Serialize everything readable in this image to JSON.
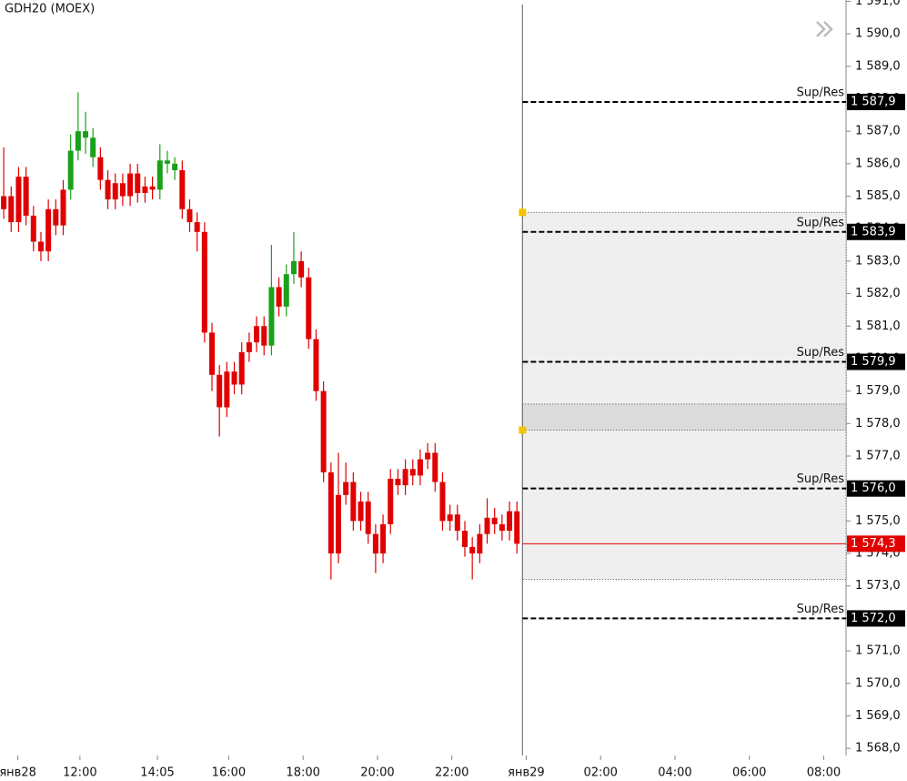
{
  "chart_data": {
    "type": "candlestick",
    "title": "GDH20 (MOEX)",
    "x": [
      9.95,
      10.15,
      10.35,
      10.55,
      10.75,
      10.95,
      11.15,
      11.35,
      11.55,
      11.75,
      11.95,
      12.15,
      12.35,
      12.55,
      12.75,
      12.95,
      13.15,
      13.35,
      13.55,
      13.75,
      13.95,
      14.15,
      14.35,
      14.55,
      14.75,
      14.95,
      15.15,
      15.35,
      15.55,
      15.75,
      15.95,
      16.15,
      16.35,
      16.55,
      16.75,
      16.95,
      17.15,
      17.35,
      17.55,
      17.75,
      17.95,
      18.15,
      18.35,
      18.55,
      18.75,
      18.95,
      19.15,
      19.35,
      19.55,
      19.75,
      19.95,
      20.15,
      20.35,
      20.55,
      20.75,
      20.95,
      21.15,
      21.35,
      21.55,
      21.75,
      21.95,
      22.15,
      22.35,
      22.55,
      22.75,
      22.95,
      23.15,
      23.35,
      23.55,
      23.75
    ],
    "open": [
      1584.6,
      1585.0,
      1584.2,
      1585.6,
      1584.4,
      1583.6,
      1583.3,
      1584.6,
      1584.1,
      1585.2,
      1586.4,
      1587.0,
      1586.8,
      1586.2,
      1585.5,
      1584.9,
      1585.4,
      1585.0,
      1585.7,
      1585.1,
      1585.3,
      1585.2,
      1586.1,
      1586.0,
      1585.8,
      1584.6,
      1584.2,
      1583.9,
      1580.8,
      1579.5,
      1578.5,
      1579.6,
      1579.2,
      1580.2,
      1580.5,
      1581.0,
      1580.4,
      1582.2,
      1581.6,
      1582.6,
      1583.0,
      1582.5,
      1580.6,
      1579.0,
      1576.5,
      1574.0,
      1575.8,
      1576.2,
      1575.0,
      1575.6,
      1574.6,
      1574.0,
      1574.9,
      1576.3,
      1576.1,
      1576.6,
      1576.4,
      1576.9,
      1577.1,
      1576.2,
      1575.0,
      1575.2,
      1574.7,
      1574.2,
      1574.0,
      1574.6,
      1575.1,
      1574.9,
      1574.7,
      1575.3
    ],
    "high": [
      1586.5,
      1585.3,
      1585.9,
      1585.9,
      1584.7,
      1583.9,
      1584.9,
      1584.9,
      1585.5,
      1586.9,
      1588.2,
      1587.6,
      1587.1,
      1586.5,
      1585.8,
      1585.7,
      1585.7,
      1586.0,
      1586.0,
      1585.6,
      1585.6,
      1586.6,
      1586.4,
      1586.2,
      1586.1,
      1584.9,
      1584.5,
      1584.2,
      1581.1,
      1579.8,
      1579.9,
      1579.9,
      1580.5,
      1580.8,
      1581.3,
      1581.3,
      1583.5,
      1582.5,
      1582.9,
      1583.9,
      1583.3,
      1582.8,
      1580.9,
      1579.3,
      1576.8,
      1577.1,
      1576.8,
      1576.5,
      1575.9,
      1575.9,
      1574.9,
      1575.2,
      1576.6,
      1576.6,
      1576.9,
      1576.9,
      1577.2,
      1577.4,
      1577.4,
      1576.5,
      1575.5,
      1575.5,
      1575.0,
      1574.5,
      1574.9,
      1575.7,
      1575.4,
      1575.2,
      1575.6,
      1575.6
    ],
    "low": [
      1584.3,
      1583.9,
      1583.9,
      1584.1,
      1583.3,
      1583.0,
      1583.0,
      1583.8,
      1583.8,
      1584.9,
      1586.1,
      1586.3,
      1585.9,
      1585.2,
      1584.6,
      1584.6,
      1584.7,
      1584.7,
      1584.8,
      1584.8,
      1584.9,
      1584.9,
      1585.7,
      1585.5,
      1584.3,
      1583.9,
      1583.3,
      1580.5,
      1579.0,
      1577.6,
      1578.2,
      1578.9,
      1578.9,
      1579.9,
      1580.2,
      1580.1,
      1580.1,
      1581.3,
      1581.3,
      1582.3,
      1582.2,
      1580.3,
      1578.7,
      1576.2,
      1573.2,
      1573.7,
      1575.5,
      1574.7,
      1574.7,
      1574.3,
      1573.4,
      1573.7,
      1574.6,
      1575.8,
      1575.8,
      1576.1,
      1576.1,
      1576.6,
      1575.9,
      1574.7,
      1574.7,
      1574.4,
      1573.9,
      1573.2,
      1573.7,
      1574.3,
      1574.6,
      1574.4,
      1574.4,
      1574.0
    ],
    "close": [
      1585.0,
      1584.2,
      1585.6,
      1584.4,
      1583.6,
      1583.3,
      1584.6,
      1584.1,
      1585.2,
      1586.4,
      1587.0,
      1586.8,
      1586.2,
      1585.5,
      1584.9,
      1585.4,
      1585.0,
      1585.7,
      1585.1,
      1585.3,
      1585.2,
      1586.1,
      1586.0,
      1585.8,
      1584.6,
      1584.2,
      1583.9,
      1580.8,
      1579.5,
      1578.5,
      1579.6,
      1579.2,
      1580.2,
      1580.5,
      1581.0,
      1580.4,
      1582.2,
      1581.6,
      1582.6,
      1583.0,
      1582.5,
      1580.6,
      1579.0,
      1576.5,
      1574.0,
      1575.8,
      1576.2,
      1575.0,
      1575.6,
      1574.6,
      1574.0,
      1574.9,
      1576.3,
      1576.1,
      1576.6,
      1576.4,
      1576.9,
      1577.1,
      1576.2,
      1575.0,
      1575.2,
      1574.7,
      1574.2,
      1574.0,
      1574.6,
      1575.1,
      1574.9,
      1574.7,
      1575.3,
      1574.3
    ],
    "colors": [
      "#e00000",
      "#e00000",
      "#e00000",
      "#e00000",
      "#e00000",
      "#e00000",
      "#e00000",
      "#e00000",
      "#e00000",
      "#1aa01a",
      "#1aa01a",
      "#1aa01a",
      "#1aa01a",
      "#e00000",
      "#e00000",
      "#e00000",
      "#e00000",
      "#e00000",
      "#e00000",
      "#e00000",
      "#e00000",
      "#1aa01a",
      "#1aa01a",
      "#1aa01a",
      "#e00000",
      "#e00000",
      "#e00000",
      "#e00000",
      "#e00000",
      "#e00000",
      "#e00000",
      "#e00000",
      "#e00000",
      "#e00000",
      "#e00000",
      "#e00000",
      "#1aa01a",
      "#e00000",
      "#1aa01a",
      "#1aa01a",
      "#e00000",
      "#e00000",
      "#e00000",
      "#e00000",
      "#e00000",
      "#e00000",
      "#e00000",
      "#e00000",
      "#e00000",
      "#e00000",
      "#e00000",
      "#e00000",
      "#e00000",
      "#e00000",
      "#e00000",
      "#e00000",
      "#e00000",
      "#e00000",
      "#e00000",
      "#e00000",
      "#e00000",
      "#e00000",
      "#e00000",
      "#e00000",
      "#e00000",
      "#e00000",
      "#e00000",
      "#e00000",
      "#e00000",
      "#e00000"
    ],
    "xlim": [
      9.85,
      32.6
    ],
    "xticks": [
      {
        "value": 10.33,
        "label": "янв28"
      },
      {
        "value": 12,
        "label": "12:00"
      },
      {
        "value": 14.083,
        "label": "14:05"
      },
      {
        "value": 16,
        "label": "16:00"
      },
      {
        "value": 18,
        "label": "18:00"
      },
      {
        "value": 20,
        "label": "20:00"
      },
      {
        "value": 22,
        "label": "22:00"
      },
      {
        "value": 24,
        "label": "янв29"
      },
      {
        "value": 26,
        "label": "02:00"
      },
      {
        "value": 28,
        "label": "04:00"
      },
      {
        "value": 30,
        "label": "06:00"
      },
      {
        "value": 32,
        "label": "08:00"
      }
    ],
    "ylim": [
      1567.78,
      1591.04
    ],
    "yticks": [
      {
        "value": 1568,
        "label": "1 568,0"
      },
      {
        "value": 1569,
        "label": "1 569,0"
      },
      {
        "value": 1570,
        "label": "1 570,0"
      },
      {
        "value": 1571,
        "label": "1 571,0"
      },
      {
        "value": 1572,
        "label": "1 572,0"
      },
      {
        "value": 1573,
        "label": "1 573,0"
      },
      {
        "value": 1574,
        "label": "1 574,0"
      },
      {
        "value": 1575,
        "label": "1 575,0"
      },
      {
        "value": 1576,
        "label": "1 576,0"
      },
      {
        "value": 1577,
        "label": "1 577,0"
      },
      {
        "value": 1578,
        "label": "1 578,0"
      },
      {
        "value": 1579,
        "label": "1 579,0"
      },
      {
        "value": 1580,
        "label": "1 580,0"
      },
      {
        "value": 1581,
        "label": "1 581,0"
      },
      {
        "value": 1582,
        "label": "1 582,0"
      },
      {
        "value": 1583,
        "label": "1 583,0"
      },
      {
        "value": 1584,
        "label": "1 584,0"
      },
      {
        "value": 1585,
        "label": "1 585,0"
      },
      {
        "value": 1586,
        "label": "1 586,0"
      },
      {
        "value": 1587,
        "label": "1 587,0"
      },
      {
        "value": 1588,
        "label": "1 588,0"
      },
      {
        "value": 1589,
        "label": "1 589,0"
      },
      {
        "value": 1590,
        "label": "1 590,0"
      },
      {
        "value": 1591,
        "label": "1 591,0"
      }
    ],
    "cursor_x": 23.9,
    "zones": [
      {
        "y": [
          1573.2,
          1584.5
        ],
        "color": "#efefef"
      },
      {
        "y": [
          1577.8,
          1578.6
        ],
        "color": "#dcdcdc"
      }
    ],
    "levels": [
      {
        "name": "Sup/Res",
        "value": 1587.9,
        "label": "1 587,9"
      },
      {
        "name": "Sup/Res",
        "value": 1583.9,
        "label": "1 583,9"
      },
      {
        "name": "Sup/Res",
        "value": 1579.9,
        "label": "1 579,9"
      },
      {
        "name": "Sup/Res",
        "value": 1576.0,
        "label": "1 576,0"
      },
      {
        "name": "Sup/Res",
        "value": 1572.0,
        "label": "1 572,0"
      }
    ],
    "last_price": {
      "value": 1574.3,
      "label": "1 574,3",
      "color": "#e00000"
    }
  }
}
